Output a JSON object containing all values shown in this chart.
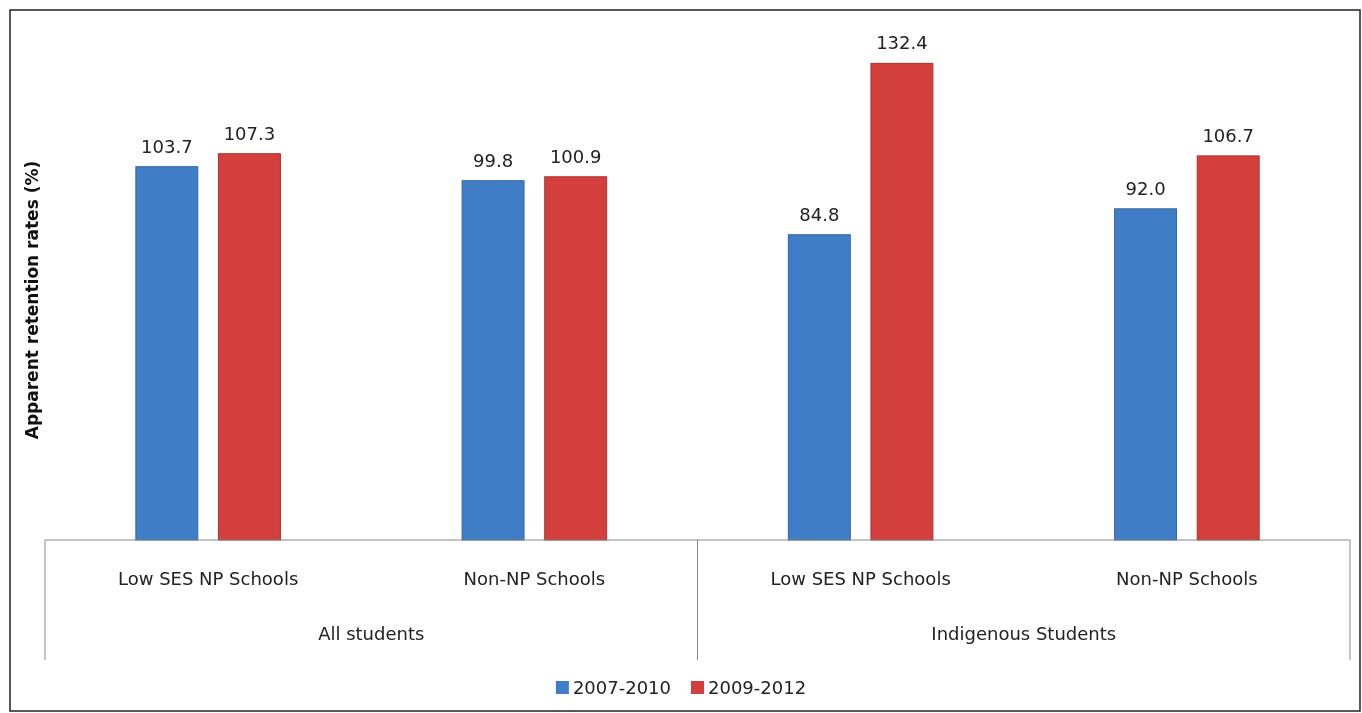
{
  "chart_data": {
    "type": "bar",
    "ylabel": "Apparent retention rates (%)",
    "categories": [
      "Low SES NP Schools",
      "Non-NP Schools",
      "Low SES NP Schools",
      "Non-NP Schools"
    ],
    "series": [
      {
        "name": "2007-2010",
        "color": "#3f7ec6",
        "values": [
          103.7,
          99.8,
          84.8,
          92.0
        ],
        "value_labels": [
          "103.7",
          "99.8",
          "84.8",
          "92.0"
        ]
      },
      {
        "name": "2009-2012",
        "color": "#d23f3c",
        "values": [
          107.3,
          100.9,
          132.4,
          106.7
        ],
        "value_labels": [
          "107.3",
          "100.9",
          "132.4",
          "106.7"
        ]
      }
    ],
    "annotations": [
      "All students",
      "Indigenous Students"
    ],
    "legend": "bottom",
    "grid": false
  }
}
